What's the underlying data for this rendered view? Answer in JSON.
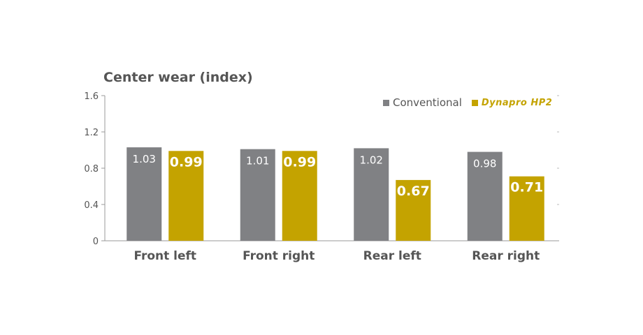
{
  "chart_data": {
    "type": "bar",
    "title": "Center wear (index)",
    "categories": [
      "Front left",
      "Front right",
      "Rear left",
      "Rear right"
    ],
    "series": [
      {
        "name": "Conventional",
        "values": [
          1.03,
          1.01,
          1.02,
          0.98
        ],
        "labels": [
          "1.03",
          "1.01",
          "1.02",
          "0.98"
        ],
        "color": "#808184"
      },
      {
        "name": "Dynapro HP2",
        "values": [
          0.99,
          0.99,
          0.67,
          0.71
        ],
        "labels": [
          "0.99",
          "0.99",
          "0.67",
          "0.71"
        ],
        "color": "#c4a300"
      }
    ],
    "yticks": [
      "0",
      "0.4",
      "0.8",
      "1.2",
      "1.6"
    ],
    "ylim": [
      0,
      1.6
    ],
    "legend_position": "top-right",
    "grid": false
  }
}
